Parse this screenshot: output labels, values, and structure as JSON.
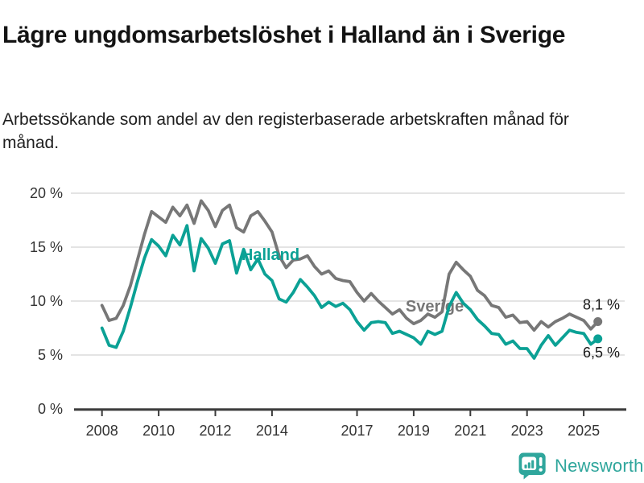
{
  "header": {
    "title": "Lägre ungdomsarbetslöshet i Halland än i Sverige",
    "subtitle": "Arbetssökande som andel av den registerbaserade arbetskraften månad för månad."
  },
  "footer": {
    "brand": "Newsworthy"
  },
  "colors": {
    "halland": "#0ba195",
    "sverige": "#777777",
    "grid": "#dcdcdc",
    "axis": "#3b3b3b",
    "tick_text": "#333333",
    "end_label_text": "#1a1a1a",
    "logo": "#2fa69c"
  },
  "chart_data": {
    "type": "line",
    "unit": "%",
    "grid": true,
    "legend": "inline-labels",
    "ylim": [
      0,
      20
    ],
    "x_range": [
      2008,
      2025.5
    ],
    "y_ticks": [
      {
        "value": 0,
        "label": "0 %"
      },
      {
        "value": 5,
        "label": "5 %"
      },
      {
        "value": 10,
        "label": "10 %"
      },
      {
        "value": 15,
        "label": "15 %"
      },
      {
        "value": 20,
        "label": "20 %"
      }
    ],
    "x_ticks": [
      {
        "value": 2008,
        "label": "2008"
      },
      {
        "value": 2010,
        "label": "2010"
      },
      {
        "value": 2012,
        "label": "2012"
      },
      {
        "value": 2014,
        "label": "2014"
      },
      {
        "value": 2017,
        "label": "2017"
      },
      {
        "value": 2019,
        "label": "2019"
      },
      {
        "value": 2021,
        "label": "2021"
      },
      {
        "value": 2023,
        "label": "2023"
      },
      {
        "value": 2025,
        "label": "2025"
      }
    ],
    "x": [
      2008.0,
      2008.25,
      2008.5,
      2008.75,
      2009.0,
      2009.25,
      2009.5,
      2009.75,
      2010.0,
      2010.25,
      2010.5,
      2010.75,
      2011.0,
      2011.25,
      2011.5,
      2011.75,
      2012.0,
      2012.25,
      2012.5,
      2012.75,
      2013.0,
      2013.25,
      2013.5,
      2013.75,
      2014.0,
      2014.25,
      2014.5,
      2014.75,
      2015.0,
      2015.25,
      2015.5,
      2015.75,
      2016.0,
      2016.25,
      2016.5,
      2016.75,
      2017.0,
      2017.25,
      2017.5,
      2017.75,
      2018.0,
      2018.25,
      2018.5,
      2018.75,
      2019.0,
      2019.25,
      2019.5,
      2019.75,
      2020.0,
      2020.25,
      2020.5,
      2020.75,
      2021.0,
      2021.25,
      2021.5,
      2021.75,
      2022.0,
      2022.25,
      2022.5,
      2022.75,
      2023.0,
      2023.25,
      2023.5,
      2023.75,
      2024.0,
      2024.25,
      2024.5,
      2024.75,
      2025.0,
      2025.25,
      2025.5
    ],
    "series": [
      {
        "name": "Sverige",
        "color": "#777777",
        "end_label": "8,1 %",
        "end_value": 8.1,
        "values": [
          9.6,
          8.2,
          8.4,
          9.6,
          11.4,
          13.8,
          16.2,
          18.3,
          17.8,
          17.3,
          18.7,
          17.9,
          18.9,
          17.2,
          19.3,
          18.4,
          16.9,
          18.4,
          18.9,
          16.8,
          16.4,
          17.9,
          18.3,
          17.4,
          16.4,
          14.2,
          13.1,
          13.8,
          13.9,
          14.2,
          13.2,
          12.5,
          12.8,
          12.1,
          11.9,
          11.8,
          10.8,
          10.0,
          10.7,
          10.0,
          9.4,
          8.8,
          9.2,
          8.4,
          7.9,
          8.2,
          8.8,
          8.5,
          9.0,
          12.5,
          13.6,
          12.9,
          12.3,
          11.0,
          10.5,
          9.6,
          9.4,
          8.5,
          8.7,
          8.0,
          8.1,
          7.3,
          8.1,
          7.6,
          8.1,
          8.4,
          8.8,
          8.5,
          8.2,
          7.4,
          8.1
        ]
      },
      {
        "name": "Halland",
        "color": "#0ba195",
        "end_label": "6,5 %",
        "end_value": 6.5,
        "values": [
          7.5,
          5.9,
          5.7,
          7.2,
          9.4,
          11.8,
          14.0,
          15.7,
          15.1,
          14.2,
          16.1,
          15.2,
          17.0,
          12.8,
          15.8,
          14.9,
          13.5,
          15.3,
          15.6,
          12.6,
          14.8,
          12.9,
          13.9,
          12.5,
          11.9,
          10.2,
          9.9,
          10.8,
          12.0,
          11.3,
          10.5,
          9.4,
          9.9,
          9.5,
          9.8,
          9.2,
          8.1,
          7.3,
          8.0,
          8.1,
          8.0,
          7.0,
          7.2,
          6.9,
          6.6,
          6.0,
          7.2,
          6.9,
          7.2,
          9.5,
          10.8,
          9.8,
          9.2,
          8.3,
          7.7,
          7.0,
          6.9,
          6.0,
          6.3,
          5.6,
          5.6,
          4.7,
          5.9,
          6.8,
          5.9,
          6.6,
          7.3,
          7.1,
          7.0,
          6.0,
          6.5
        ]
      }
    ]
  }
}
